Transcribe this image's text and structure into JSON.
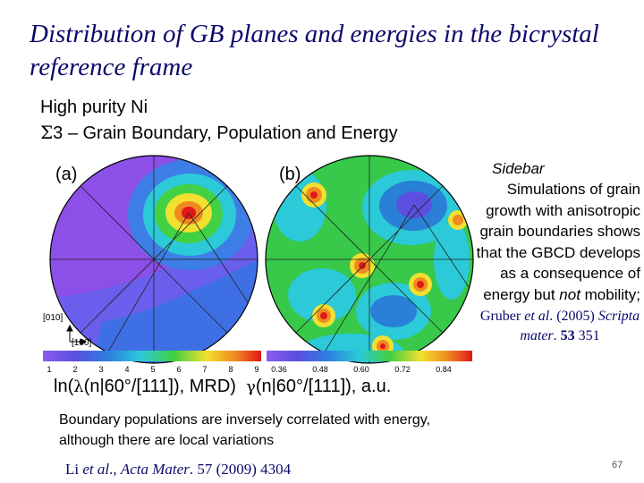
{
  "slide": {
    "title": "Distribution of GB planes and energies in the bicrystal reference frame",
    "subtitle_line1": "High purity Ni",
    "subtitle_sigma": "Σ",
    "subtitle_line2": "3 – Grain Boundary, Population and Energy",
    "page_number": "67"
  },
  "figure": {
    "panel_a_label": "(a)",
    "panel_b_label": "(b)",
    "axis_label_010": "[010]",
    "axis_label_100": "[100]",
    "colorbar_a_ticks": [
      "1",
      "2",
      "3",
      "4",
      "5",
      "6",
      "7",
      "8",
      "9"
    ],
    "colorbar_b_ticks": [
      "0.36",
      "0.48",
      "0.60",
      "0.72",
      "0.84"
    ],
    "caption_a_prefix": "ln(",
    "caption_a_lambda": "λ",
    "caption_a_suffix": "(n|60°/[111]), MRD)",
    "caption_b_gamma": "γ",
    "caption_b_suffix": "(n|60°/[111]), a.u."
  },
  "summary": {
    "text": "Boundary populations are inversely correlated with energy, although there are local variations"
  },
  "citation": {
    "authors": "Li",
    "etal": " et al",
    "sep": "., ",
    "journal": "Acta Mater",
    "details": ". 57 (2009) 4304"
  },
  "sidebar": {
    "title": "Sidebar",
    "body_before": "Simulations of grain growth with anisotropic grain boundaries shows that the GBCD develops as a consequence of energy but ",
    "body_em": "not",
    "body_after": " mobility;",
    "ref_author": "Gruber",
    "ref_etal": " et al",
    "ref_year": ". (2005) ",
    "ref_journal": "Scripta mater",
    "ref_sep": ". ",
    "ref_volume": "53",
    "ref_page": " 351"
  },
  "colors": {
    "title": "#0a0a6a",
    "energy_blue": "#2a7fd6",
    "energy_green": "#38c84a",
    "population_violet": "#8c4fe8",
    "peak_red": "#e03020"
  }
}
